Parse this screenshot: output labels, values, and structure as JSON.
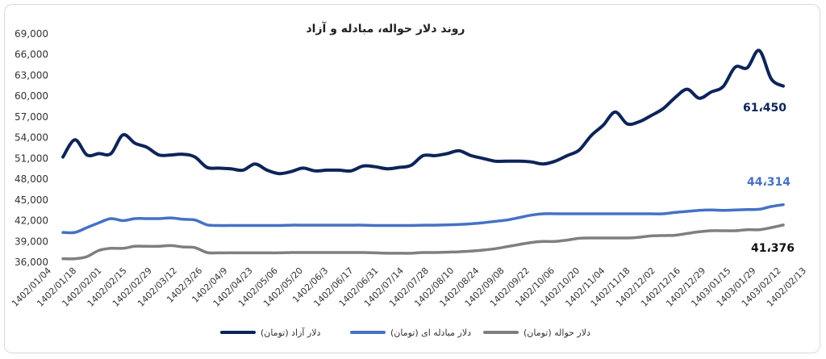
{
  "chart_data": {
    "type": "line",
    "title": "روند دلار حواله، مبادله و آزاد",
    "xlabel": "",
    "ylabel": "",
    "ylim": [
      36000,
      69000
    ],
    "y_ticks": [
      "36,000",
      "39,000",
      "42,000",
      "45,000",
      "48,000",
      "51,000",
      "54,000",
      "57,000",
      "60,000",
      "63,000",
      "66,000",
      "69,000"
    ],
    "y_tick_values": [
      36000,
      39000,
      42000,
      45000,
      48000,
      51000,
      54000,
      57000,
      60000,
      63000,
      66000,
      69000
    ],
    "x_ticks": [
      "1402/01/04",
      "1402/01/18",
      "1402/02/01",
      "1402/02/15",
      "1402/02/29",
      "1402/03/12",
      "1402/3/26",
      "1402/04/9",
      "1402/04/23",
      "1402/05/06",
      "1402/05/20",
      "1402/06/3",
      "1402/06/17",
      "1402/06/31",
      "1402/07/14",
      "1402/07/28",
      "1402/08/10",
      "1402/08/24",
      "1402/09/08",
      "1402/09/22",
      "1402/10/06",
      "1402/10/20",
      "1402/11/04",
      "1402/11/18",
      "1402/12/02",
      "1402/12/16",
      "1402/12/29",
      "1403/01/15",
      "1403/01/29",
      "1403/02/12",
      "1402/02/13"
    ],
    "grid": false,
    "legend_position": "bottom",
    "series": [
      {
        "name": "دلار آزاد (تومان)",
        "color": "#0c2459",
        "end_label": "61،450",
        "values": [
          51200,
          53700,
          51500,
          51700,
          51700,
          54400,
          53200,
          52600,
          51500,
          51500,
          51600,
          51200,
          49700,
          49600,
          49500,
          49300,
          50200,
          49300,
          48800,
          49100,
          49600,
          49200,
          49300,
          49300,
          49200,
          49900,
          49800,
          49500,
          49700,
          50000,
          51400,
          51400,
          51700,
          52100,
          51400,
          51000,
          50600,
          50600,
          50600,
          50500,
          50200,
          50600,
          51400,
          52200,
          54300,
          55800,
          57700,
          56000,
          56300,
          57200,
          58200,
          59800,
          61000,
          59700,
          60600,
          61400,
          64200,
          64100,
          66600,
          62500,
          61450
        ]
      },
      {
        "name": "دلار مبادله ای (تومان)",
        "color": "#4472c4",
        "end_label": "44،314",
        "values": [
          40300,
          40300,
          41000,
          41700,
          42300,
          42000,
          42300,
          42300,
          42300,
          42400,
          42200,
          42100,
          41400,
          41300,
          41300,
          41300,
          41300,
          41300,
          41300,
          41350,
          41350,
          41350,
          41350,
          41350,
          41350,
          41350,
          41300,
          41300,
          41300,
          41300,
          41350,
          41350,
          41400,
          41450,
          41550,
          41700,
          41900,
          42100,
          42450,
          42800,
          43000,
          43000,
          43000,
          43000,
          43000,
          43000,
          43000,
          43000,
          43000,
          43000,
          43000,
          43200,
          43350,
          43500,
          43550,
          43500,
          43550,
          43600,
          43650,
          44050,
          44314
        ]
      },
      {
        "name": "دلار حواله (تومان)",
        "color": "#7f7f7f",
        "end_label": "41،376",
        "values": [
          36500,
          36500,
          36800,
          37700,
          38000,
          38000,
          38300,
          38300,
          38300,
          38400,
          38200,
          38100,
          37400,
          37350,
          37350,
          37350,
          37350,
          37350,
          37350,
          37400,
          37400,
          37400,
          37400,
          37400,
          37400,
          37400,
          37350,
          37300,
          37300,
          37300,
          37400,
          37400,
          37450,
          37500,
          37600,
          37750,
          37950,
          38250,
          38550,
          38850,
          39000,
          39000,
          39200,
          39450,
          39500,
          39500,
          39500,
          39500,
          39600,
          39800,
          39850,
          39900,
          40150,
          40400,
          40550,
          40550,
          40550,
          40700,
          40700,
          41000,
          41376
        ]
      }
    ]
  }
}
